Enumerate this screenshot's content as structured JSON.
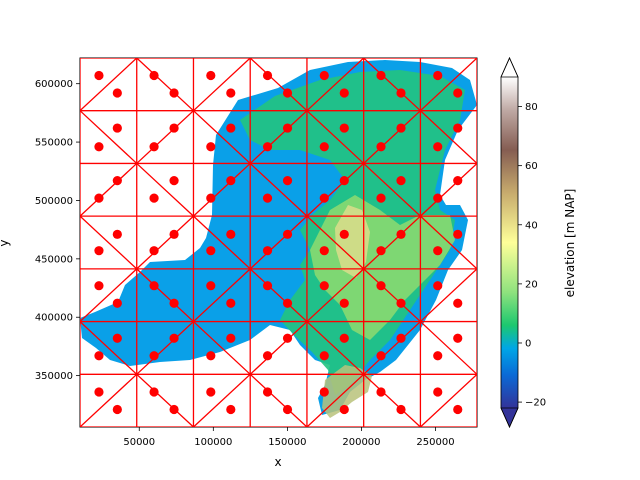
{
  "chart_data": {
    "type": "heatmap",
    "title": "",
    "xlabel": "x",
    "ylabel": "y",
    "xlim": [
      10000,
      278000
    ],
    "ylim": [
      306000,
      622000
    ],
    "x_ticks": [
      50000,
      100000,
      150000,
      200000,
      250000
    ],
    "x_tick_labels": [
      "50000",
      "100000",
      "150000",
      "200000",
      "250000"
    ],
    "y_ticks": [
      350000,
      400000,
      450000,
      500000,
      550000,
      600000
    ],
    "y_tick_labels": [
      "350000",
      "400000",
      "450000",
      "500000",
      "550000",
      "600000"
    ],
    "grid": false,
    "colorbar": {
      "label": "elevation [m NAP]",
      "range": [
        -22,
        90
      ],
      "ticks": [
        -20,
        0,
        20,
        40,
        60,
        80
      ],
      "tick_labels": [
        "−20",
        "0",
        "20",
        "40",
        "60",
        "80"
      ],
      "extend": "both",
      "colormap": "terrain"
    },
    "mesh": {
      "color": "#ff0000",
      "x_edges": [
        10000,
        48300,
        86600,
        124900,
        163200,
        201500,
        239800,
        278000
      ],
      "y_edges": [
        306000,
        351100,
        396300,
        441400,
        486600,
        531700,
        576900,
        622000
      ]
    },
    "points": {
      "color": "#ff0000",
      "series": [
        {
          "x": [
            22800,
            60000,
            98300,
            136600,
            174900,
            213200,
            251500
          ],
          "y": [
            607000,
            607000,
            607000,
            607000,
            607000,
            607000,
            607000
          ]
        },
        {
          "x": [
            35200,
            73500,
            111800,
            150100,
            188400,
            226700,
            265000
          ],
          "y": [
            592000,
            592000,
            592000,
            592000,
            592000,
            592000,
            592000
          ]
        },
        {
          "x": [
            35200,
            73500,
            111800,
            150100,
            188400,
            226700,
            265000
          ],
          "y": [
            562000,
            562000,
            562000,
            562000,
            562000,
            562000,
            562000
          ]
        },
        {
          "x": [
            22800,
            60000,
            98300,
            136600,
            174900,
            213200,
            251500
          ],
          "y": [
            546000,
            546000,
            546000,
            546000,
            546000,
            546000,
            546000
          ]
        },
        {
          "x": [
            35200,
            73500,
            111800,
            150100,
            188400,
            226700,
            265000
          ],
          "y": [
            517000,
            517000,
            517000,
            517000,
            517000,
            517000,
            517000
          ]
        },
        {
          "x": [
            22800,
            60000,
            98300,
            136600,
            174900,
            213200,
            251500
          ],
          "y": [
            502000,
            502000,
            502000,
            502000,
            502000,
            502000,
            502000
          ]
        },
        {
          "x": [
            35200,
            73500,
            111800,
            150100,
            188400,
            226700,
            265000
          ],
          "y": [
            471000,
            471000,
            471000,
            471000,
            471000,
            471000,
            471000
          ]
        },
        {
          "x": [
            22800,
            60000,
            98300,
            136600,
            174900,
            213200,
            251500
          ],
          "y": [
            457000,
            457000,
            457000,
            457000,
            457000,
            457000,
            457000
          ]
        },
        {
          "x": [
            22800,
            60000,
            98300,
            136600,
            174900,
            213200,
            251500
          ],
          "y": [
            427000,
            427000,
            427000,
            427000,
            427000,
            427000,
            427000
          ]
        },
        {
          "x": [
            35200,
            73500,
            111800,
            150100,
            188400,
            226700,
            265000
          ],
          "y": [
            412000,
            412000,
            412000,
            412000,
            412000,
            412000,
            412000
          ]
        },
        {
          "x": [
            35200,
            73500,
            111800,
            150100,
            188400,
            226700,
            265000
          ],
          "y": [
            382000,
            382000,
            382000,
            382000,
            382000,
            382000,
            382000
          ]
        },
        {
          "x": [
            22800,
            60000,
            98300,
            136600,
            174900,
            213200,
            251500
          ],
          "y": [
            367000,
            367000,
            367000,
            367000,
            367000,
            367000,
            367000
          ]
        },
        {
          "x": [
            22800,
            60000,
            98300,
            136600,
            174900,
            213200,
            251500
          ],
          "y": [
            336000,
            336000,
            336000,
            336000,
            336000,
            336000,
            336000
          ]
        },
        {
          "x": [
            35200,
            73500,
            111800,
            150100,
            188400,
            226700,
            265000
          ],
          "y": [
            321000,
            321000,
            321000,
            321000,
            321000,
            321000,
            321000
          ]
        }
      ]
    }
  }
}
